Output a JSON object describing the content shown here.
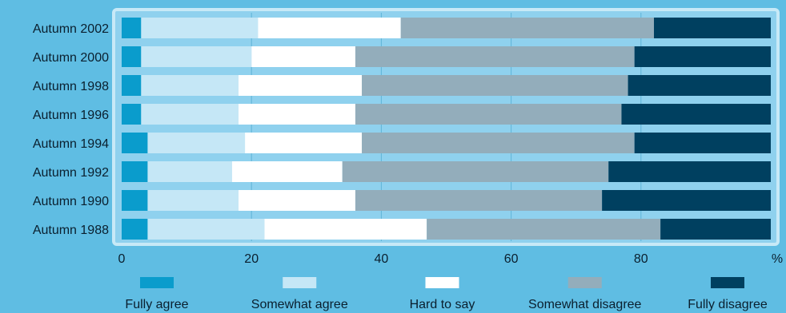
{
  "chart_data": {
    "type": "bar",
    "orientation": "horizontal",
    "stacked": true,
    "categories": [
      "Autumn 2002",
      "Autumn 2000",
      "Autumn 1998",
      "Autumn 1996",
      "Autumn 1994",
      "Autumn 1992",
      "Autumn 1990",
      "Autumn 1988"
    ],
    "series": [
      {
        "name": "Fully agree",
        "color": "#0a9ccc",
        "values": [
          3,
          3,
          3,
          3,
          4,
          4,
          4,
          4
        ]
      },
      {
        "name": "Somewhat agree",
        "color": "#c5e7f6",
        "values": [
          18,
          17,
          15,
          15,
          15,
          13,
          14,
          18
        ]
      },
      {
        "name": "Hard to say",
        "color": "#ffffff",
        "values": [
          22,
          16,
          19,
          18,
          18,
          17,
          18,
          25
        ]
      },
      {
        "name": "Somewhat disagree",
        "color": "#93adbb",
        "values": [
          39,
          43,
          41,
          41,
          42,
          41,
          38,
          36
        ]
      },
      {
        "name": "Fully disagree",
        "color": "#004060",
        "values": [
          18,
          21,
          22,
          23,
          21,
          25,
          26,
          17
        ]
      }
    ],
    "xticks": [
      0,
      20,
      40,
      60,
      80
    ],
    "xlim": [
      0,
      100
    ],
    "xunit": "%",
    "grid": true,
    "legend_position": "bottom",
    "panel_color": "#8fd1ee",
    "panel_border_color": "#c7e9f7",
    "grid_color": "#5fb5d8"
  }
}
